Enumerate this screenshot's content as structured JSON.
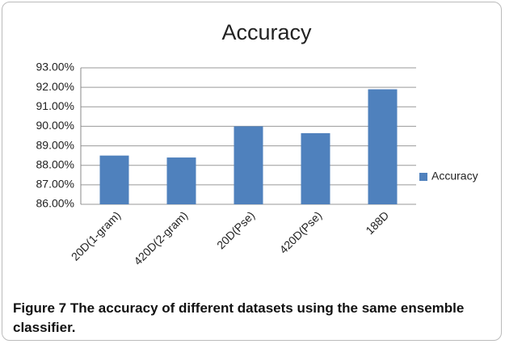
{
  "chart_data": {
    "type": "bar",
    "title": "Accuracy",
    "categories": [
      "20D(1-gram)",
      "420D(2-gram)",
      "20D(Pse)",
      "420D(Pse)",
      "188D"
    ],
    "series": [
      {
        "name": "Accuracy",
        "color": "#4f81bd",
        "values": [
          88.5,
          88.4,
          90.0,
          89.65,
          91.9
        ]
      }
    ],
    "ylim": [
      86,
      93
    ],
    "yticks": [
      {
        "value": 86,
        "label": "86.00%"
      },
      {
        "value": 87,
        "label": "87.00%"
      },
      {
        "value": 88,
        "label": "88.00%"
      },
      {
        "value": 89,
        "label": "89.00%"
      },
      {
        "value": 90,
        "label": "90.00%"
      },
      {
        "value": 91,
        "label": "91.00%"
      },
      {
        "value": 92,
        "label": "92.00%"
      },
      {
        "value": 93,
        "label": "93.00%"
      }
    ],
    "grid": true,
    "legend": "right"
  },
  "caption": {
    "label": "Figure 7",
    "text": "The accuracy of different datasets using the same ensemble classifier."
  }
}
